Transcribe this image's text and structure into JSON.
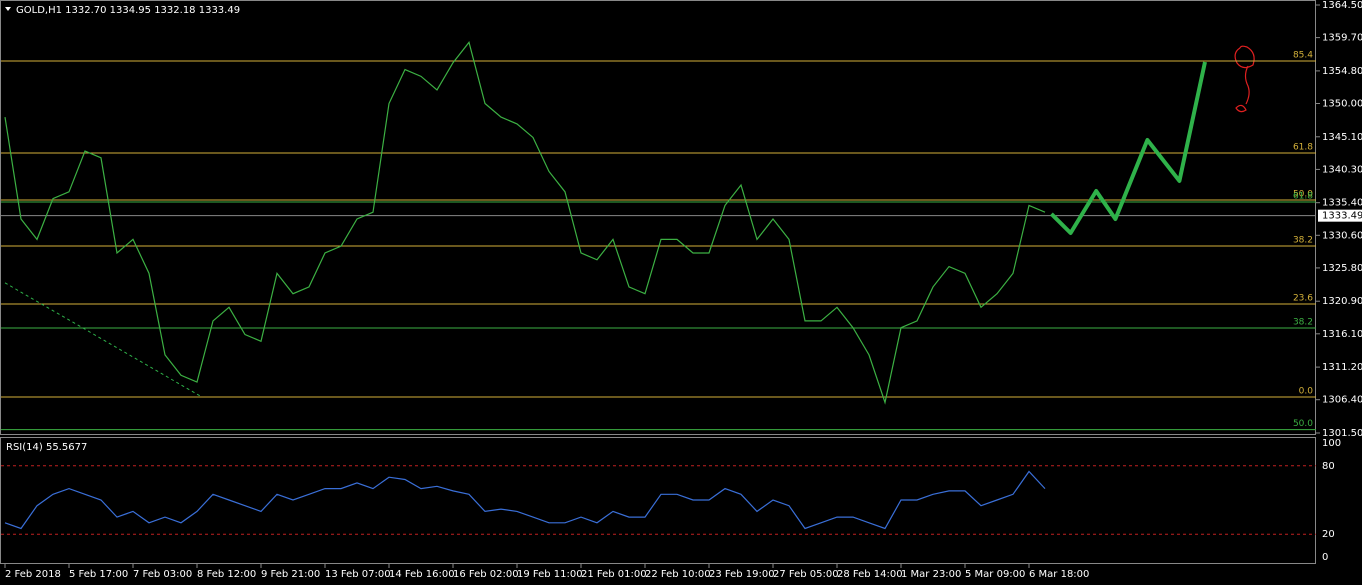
{
  "chart_data": [
    {
      "type": "line",
      "title": "GOLD,H1  1332.70 1334.95 1332.18 1333.49",
      "categories": [
        "2 Feb 2018",
        null,
        null,
        null,
        "5 Feb 17:00",
        null,
        null,
        null,
        "7 Feb 03:00",
        null,
        null,
        null,
        "8 Feb 12:00",
        null,
        null,
        null,
        "9 Feb 21:00",
        null,
        null,
        null,
        "13 Feb 07:00",
        null,
        null,
        null,
        "14 Feb 16:00",
        null,
        null,
        null,
        "16 Feb 02:00",
        null,
        null,
        null,
        "19 Feb 11:00",
        null,
        null,
        null,
        "21 Feb 01:00",
        null,
        null,
        null,
        "22 Feb 10:00",
        null,
        null,
        null,
        "23 Feb 19:00",
        null,
        null,
        null,
        "27 Feb 05:00",
        null,
        null,
        null,
        "28 Feb 14:00",
        null,
        null,
        null,
        "1 Mar 23:00",
        null,
        null,
        null,
        "5 Mar 09:00",
        null,
        null,
        null,
        "6 Mar 18:00",
        null
      ],
      "series": [
        {
          "name": "GOLD",
          "color": "#3cb043",
          "values": [
            1348,
            1333,
            1330,
            1336,
            1337,
            1343,
            1342,
            1328,
            1330,
            1325,
            1313,
            1310,
            1309,
            1318,
            1320,
            1316,
            1315,
            1325,
            1322,
            1323,
            1328,
            1329,
            1333,
            1334,
            1350,
            1355,
            1354,
            1352,
            1356,
            1359,
            1350,
            1348,
            1347,
            1345,
            1340,
            1337,
            1328,
            1327,
            1330,
            1323,
            1322,
            1330,
            1330,
            1328,
            1328,
            1335,
            1338,
            1330,
            1333,
            1330,
            1318,
            1318,
            1320,
            1317,
            1313,
            1306,
            1317,
            1318,
            1323,
            1326,
            1325,
            1320,
            1322,
            1325,
            1335,
            1334
          ]
        }
      ],
      "forecast": {
        "color": "#2fb24a",
        "x": [
          65.4,
          66.6,
          68.2,
          69.4,
          71.4,
          73.4,
          75.0
        ],
        "values": [
          1333.74,
          1330.94,
          1337.12,
          1333.0,
          1344.63,
          1338.6,
          1356.11
        ]
      },
      "trendline": {
        "color": "#2fb24a",
        "x": [
          0,
          12.2
        ],
        "values": [
          1323.6,
          1306.95
        ]
      },
      "levels": [
        {
          "label": "85.4",
          "price": 1356.26,
          "color": "#d4b13a"
        },
        {
          "label": "61.8",
          "price": 1342.72,
          "color": "#d4b13a"
        },
        {
          "label": "50.0",
          "price": 1335.8,
          "color": "#d4b13a"
        },
        {
          "label": "61.8",
          "price": 1335.5,
          "color": "#3cb043"
        },
        {
          "label": "38.2",
          "price": 1329.03,
          "color": "#d4b13a"
        },
        {
          "label": "23.6",
          "price": 1320.49,
          "color": "#d4b13a"
        },
        {
          "label": "38.2",
          "price": 1316.96,
          "color": "#3cb043"
        },
        {
          "label": "0.0",
          "price": 1306.8,
          "color": "#d4b13a"
        },
        {
          "label": "50.0",
          "price": 1302.0,
          "color": "#3cb043"
        }
      ],
      "current_price": {
        "value": 1333.49,
        "label": "1333.49"
      },
      "ylim": [
        1301.5,
        1364.5
      ],
      "yticks": [
        {
          "value": 1364.5,
          "label": "1364.50"
        },
        {
          "value": 1359.7,
          "label": "1359.70"
        },
        {
          "value": 1354.8,
          "label": "1354.80"
        },
        {
          "value": 1350,
          "label": "1350.00"
        },
        {
          "value": 1345.1,
          "label": "1345.10"
        },
        {
          "value": 1340.3,
          "label": "1340.30"
        },
        {
          "value": 1335.4,
          "label": "1335.40"
        },
        {
          "value": 1330.6,
          "label": "1330.60"
        },
        {
          "value": 1325.8,
          "label": "1325.80"
        },
        {
          "value": 1320.9,
          "label": "1320.90"
        },
        {
          "value": 1316.1,
          "label": "1316.10"
        },
        {
          "value": 1311.2,
          "label": "1311.20"
        },
        {
          "value": 1306.4,
          "label": "1306.40"
        },
        {
          "value": 1301.5,
          "label": "1301.50"
        }
      ]
    },
    {
      "type": "line",
      "title": "RSI(14) 55.5677",
      "series": [
        {
          "name": "RSI(14)",
          "color": "#3a6fd8",
          "values": [
            30,
            25,
            45,
            55,
            60,
            55,
            50,
            35,
            40,
            30,
            35,
            30,
            40,
            55,
            50,
            45,
            40,
            55,
            50,
            55,
            60,
            60,
            65,
            60,
            70,
            68,
            60,
            62,
            58,
            55,
            40,
            42,
            40,
            35,
            30,
            30,
            35,
            30,
            40,
            35,
            35,
            55,
            55,
            50,
            50,
            60,
            55,
            40,
            50,
            45,
            25,
            30,
            35,
            35,
            30,
            25,
            50,
            50,
            55,
            58,
            58,
            45,
            50,
            55,
            75,
            60
          ]
        }
      ],
      "levels": [
        80,
        20
      ],
      "ylim": [
        0,
        100
      ],
      "yticks": [
        100,
        80,
        20,
        0
      ]
    }
  ]
}
